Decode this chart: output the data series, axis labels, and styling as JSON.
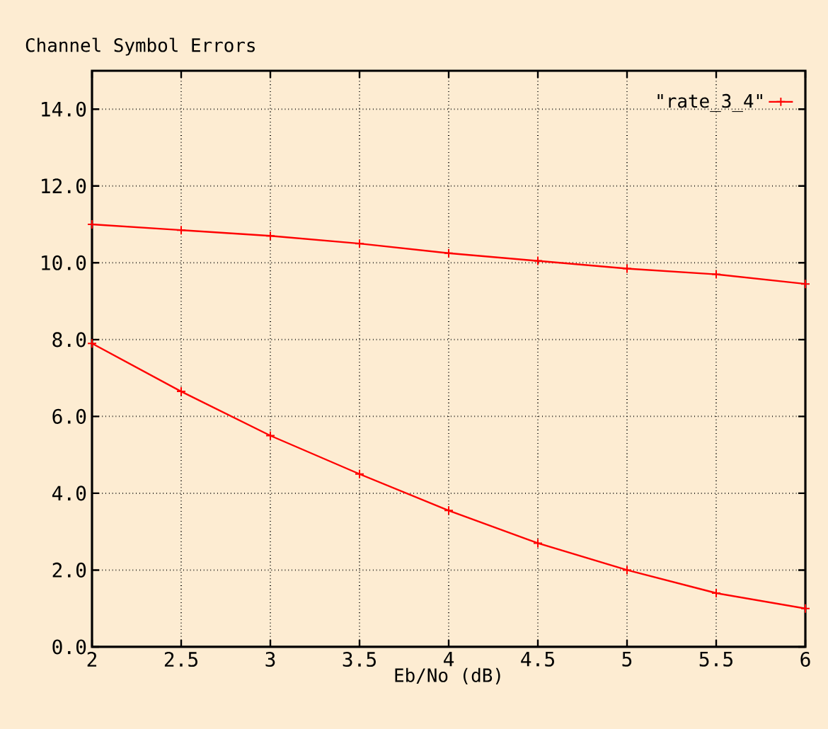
{
  "chart_data": {
    "type": "line",
    "title": "Channel Symbol Errors",
    "xlabel": "Eb/No (dB)",
    "x": [
      2,
      2.5,
      3,
      3.5,
      4,
      4.5,
      5,
      5.5,
      6
    ],
    "series": [
      {
        "name": "\"rate_3_4\"",
        "color": "#ff0000",
        "values": [
          11.0,
          10.85,
          10.7,
          10.5,
          10.25,
          10.05,
          9.85,
          9.7,
          9.45
        ]
      },
      {
        "color": "#ff0000",
        "values": [
          7.9,
          6.65,
          5.5,
          4.5,
          3.55,
          2.7,
          2.0,
          1.4,
          1.0
        ]
      }
    ],
    "xlim": [
      2,
      6
    ],
    "ylim": [
      0,
      15
    ],
    "xticks": [
      2,
      2.5,
      3,
      3.5,
      4,
      4.5,
      5,
      5.5,
      6
    ],
    "yticks": [
      {
        "value": 0,
        "label": "0.0"
      },
      {
        "value": 2,
        "label": "2.0"
      },
      {
        "value": 4,
        "label": "4.0"
      },
      {
        "value": 6,
        "label": "6.0"
      },
      {
        "value": 8,
        "label": "8.0"
      },
      {
        "value": 10,
        "label": "10.0"
      },
      {
        "value": 12,
        "label": "12.0"
      },
      {
        "value": 14,
        "label": "14.0"
      }
    ],
    "grid": true,
    "legend": "top right",
    "marker": "cross",
    "line_style": "solid"
  }
}
